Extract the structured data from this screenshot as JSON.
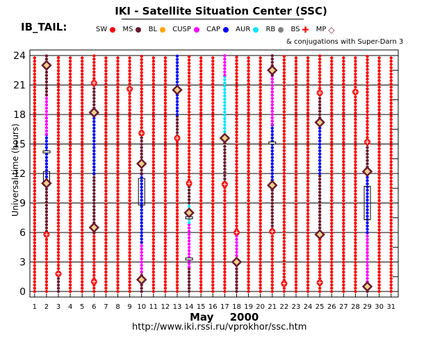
{
  "title": "IKI - Satellite Situation Center (SSC)",
  "region": "IB_TAIL:",
  "legend": [
    {
      "label": "SW",
      "symbol": "dot",
      "color": "#ff0000"
    },
    {
      "label": "MS",
      "symbol": "dot",
      "color": "#6b1a2e"
    },
    {
      "label": "BL",
      "symbol": "dot",
      "color": "#ffa500"
    },
    {
      "label": "CUSP",
      "symbol": "dot",
      "color": "#ff00ff"
    },
    {
      "label": "CAP",
      "symbol": "dot",
      "color": "#0000ff"
    },
    {
      "label": "AUR",
      "symbol": "dot",
      "color": "#00e5ff"
    },
    {
      "label": "RB",
      "symbol": "dot",
      "color": "#808080"
    },
    {
      "label": "BS",
      "symbol": "cross",
      "color": "#ff0000"
    },
    {
      "label": "MP",
      "symbol": "diamond",
      "color": "#6b1a2e"
    }
  ],
  "conjugation_note": "& conjugations with Super-Darn 3",
  "url": "http://www.iki.rssi.ru/vprokhor/ssc.htm",
  "chart_data": {
    "type": "scatter",
    "title": "IKI - Satellite Situation Center (SSC)",
    "xlabel_month": "May",
    "xlabel_year": "2000",
    "ylabel": "Universal time (hours)",
    "xlim": [
      1,
      31
    ],
    "ylim": [
      0,
      24
    ],
    "x_ticks": [
      1,
      2,
      3,
      4,
      5,
      6,
      7,
      8,
      9,
      10,
      11,
      12,
      13,
      14,
      15,
      16,
      17,
      18,
      19,
      20,
      21,
      22,
      23,
      24,
      25,
      26,
      27,
      28,
      29,
      30,
      31
    ],
    "y_ticks": [
      0,
      3,
      6,
      9,
      12,
      15,
      18,
      21,
      24
    ],
    "region_colors": {
      "SW": "#ff0000",
      "MS": "#6b1a2e",
      "BL": "#ffa500",
      "CUSP": "#ff00ff",
      "CAP": "#0000ff",
      "AUR": "#00e5ff",
      "RB": "#808080"
    },
    "days": [
      {
        "day": 1,
        "segments": [
          [
            0,
            24,
            "SW"
          ]
        ]
      },
      {
        "day": 2,
        "segments": [
          [
            0,
            5.8,
            "SW"
          ],
          [
            5.8,
            11,
            "MS"
          ],
          [
            11,
            16,
            "CAP"
          ],
          [
            16,
            20,
            "CUSP"
          ],
          [
            20,
            24,
            "MS"
          ]
        ]
      },
      {
        "day": 3,
        "segments": [
          [
            0,
            2,
            "MS"
          ],
          [
            2,
            24,
            "SW"
          ]
        ]
      },
      {
        "day": 4,
        "segments": [
          [
            0,
            24,
            "SW"
          ]
        ]
      },
      {
        "day": 5,
        "segments": [
          [
            0,
            24,
            "SW"
          ]
        ]
      },
      {
        "day": 6,
        "segments": [
          [
            0,
            6,
            "SW"
          ],
          [
            6,
            12,
            "MS"
          ],
          [
            12,
            18,
            "CAP"
          ],
          [
            18,
            21,
            "MS"
          ],
          [
            21,
            24,
            "SW"
          ]
        ]
      },
      {
        "day": 7,
        "segments": [
          [
            0,
            24,
            "SW"
          ]
        ]
      },
      {
        "day": 8,
        "segments": [
          [
            0,
            24,
            "SW"
          ]
        ]
      },
      {
        "day": 9,
        "segments": [
          [
            0,
            24,
            "SW"
          ]
        ]
      },
      {
        "day": 10,
        "segments": [
          [
            0,
            2,
            "MS"
          ],
          [
            2,
            5,
            "CUSP"
          ],
          [
            5,
            12,
            "CAP"
          ],
          [
            12,
            16,
            "MS"
          ],
          [
            16,
            24,
            "SW"
          ]
        ]
      },
      {
        "day": 11,
        "segments": [
          [
            0,
            24,
            "SW"
          ]
        ]
      },
      {
        "day": 12,
        "segments": [
          [
            0,
            24,
            "SW"
          ]
        ]
      },
      {
        "day": 13,
        "segments": [
          [
            0,
            15.5,
            "SW"
          ],
          [
            15.5,
            18,
            "MS"
          ],
          [
            18,
            24,
            "CAP"
          ]
        ]
      },
      {
        "day": 14,
        "segments": [
          [
            0,
            2.5,
            "MS"
          ],
          [
            2.5,
            7,
            "CUSP"
          ],
          [
            7,
            9,
            "AUR"
          ],
          [
            9,
            11,
            "MS"
          ],
          [
            11,
            24,
            "SW"
          ]
        ]
      },
      {
        "day": 15,
        "segments": [
          [
            0,
            24,
            "SW"
          ]
        ]
      },
      {
        "day": 16,
        "segments": [
          [
            0,
            24,
            "SW"
          ]
        ]
      },
      {
        "day": 17,
        "segments": [
          [
            0,
            10.8,
            "SW"
          ],
          [
            10.8,
            15.6,
            "MS"
          ],
          [
            15.6,
            22,
            "AUR"
          ],
          [
            22,
            24,
            "CUSP"
          ]
        ]
      },
      {
        "day": 18,
        "segments": [
          [
            0,
            3,
            "MS"
          ],
          [
            3,
            6,
            "CUSP"
          ],
          [
            6,
            24,
            "SW"
          ]
        ]
      },
      {
        "day": 19,
        "segments": [
          [
            0,
            24,
            "SW"
          ]
        ]
      },
      {
        "day": 20,
        "segments": [
          [
            0,
            24,
            "SW"
          ]
        ]
      },
      {
        "day": 21,
        "segments": [
          [
            0,
            6,
            "SW"
          ],
          [
            6,
            11,
            "MS"
          ],
          [
            11,
            17,
            "CAP"
          ],
          [
            17,
            22,
            "CUSP"
          ],
          [
            22,
            24,
            "MS"
          ]
        ]
      },
      {
        "day": 22,
        "segments": [
          [
            0,
            0.8,
            "SW"
          ],
          [
            0.8,
            24,
            "SW"
          ]
        ]
      },
      {
        "day": 23,
        "segments": [
          [
            0,
            24,
            "SW"
          ]
        ]
      },
      {
        "day": 24,
        "segments": [
          [
            0,
            24,
            "SW"
          ]
        ]
      },
      {
        "day": 25,
        "segments": [
          [
            0,
            5.8,
            "SW"
          ],
          [
            5.8,
            12,
            "MS"
          ],
          [
            12,
            17,
            "CAP"
          ],
          [
            17,
            20,
            "MS"
          ],
          [
            20,
            24,
            "SW"
          ]
        ]
      },
      {
        "day": 26,
        "segments": [
          [
            0,
            24,
            "SW"
          ]
        ]
      },
      {
        "day": 27,
        "segments": [
          [
            0,
            24,
            "SW"
          ]
        ]
      },
      {
        "day": 28,
        "segments": [
          [
            0,
            24,
            "SW"
          ]
        ]
      },
      {
        "day": 29,
        "segments": [
          [
            0,
            1,
            "MS"
          ],
          [
            1,
            6,
            "CUSP"
          ],
          [
            6,
            12,
            "CAP"
          ],
          [
            12,
            15,
            "MS"
          ],
          [
            15,
            24,
            "SW"
          ]
        ]
      },
      {
        "day": 30,
        "segments": [
          [
            0,
            24,
            "SW"
          ]
        ]
      },
      {
        "day": 31,
        "segments": [
          [
            0,
            24,
            "SW"
          ]
        ]
      }
    ],
    "mp_crossings": [
      {
        "day": 2,
        "ut": 23
      },
      {
        "day": 2,
        "ut": 11
      },
      {
        "day": 6,
        "ut": 18.2
      },
      {
        "day": 6,
        "ut": 6.5
      },
      {
        "day": 10,
        "ut": 13
      },
      {
        "day": 10,
        "ut": 1.2
      },
      {
        "day": 13,
        "ut": 20.5
      },
      {
        "day": 14,
        "ut": 8
      },
      {
        "day": 17,
        "ut": 15.6
      },
      {
        "day": 18,
        "ut": 3
      },
      {
        "day": 21,
        "ut": 22.5
      },
      {
        "day": 21,
        "ut": 10.8
      },
      {
        "day": 25,
        "ut": 17.2
      },
      {
        "day": 25,
        "ut": 5.8
      },
      {
        "day": 29,
        "ut": 12.2
      },
      {
        "day": 29,
        "ut": 0.5
      }
    ],
    "bs_crossings": [
      {
        "day": 2,
        "ut": 5.8
      },
      {
        "day": 3,
        "ut": 1.8
      },
      {
        "day": 6,
        "ut": 21.2
      },
      {
        "day": 6,
        "ut": 1
      },
      {
        "day": 9,
        "ut": 20.6
      },
      {
        "day": 10,
        "ut": 16.1
      },
      {
        "day": 13,
        "ut": 15.6
      },
      {
        "day": 14,
        "ut": 11
      },
      {
        "day": 17,
        "ut": 10.9
      },
      {
        "day": 18,
        "ut": 6
      },
      {
        "day": 21,
        "ut": 6.1
      },
      {
        "day": 22,
        "ut": 0.8
      },
      {
        "day": 25,
        "ut": 20.2
      },
      {
        "day": 25,
        "ut": 0.9
      },
      {
        "day": 28,
        "ut": 20.3
      },
      {
        "day": 29,
        "ut": 15.2
      }
    ],
    "conjugation_boxes": [
      {
        "day": 2,
        "ut_start": 10.8,
        "ut_end": 12.2
      },
      {
        "day": 10,
        "ut_start": 8.8,
        "ut_end": 11.5
      },
      {
        "day": 29,
        "ut_start": 7.3,
        "ut_end": 10.7
      }
    ],
    "horizontal_markers": [
      {
        "day": 2,
        "ut": 14.2
      },
      {
        "day": 14,
        "ut": 3.3
      },
      {
        "day": 14,
        "ut": 7.5
      },
      {
        "day": 21,
        "ut": 15.1
      }
    ]
  }
}
